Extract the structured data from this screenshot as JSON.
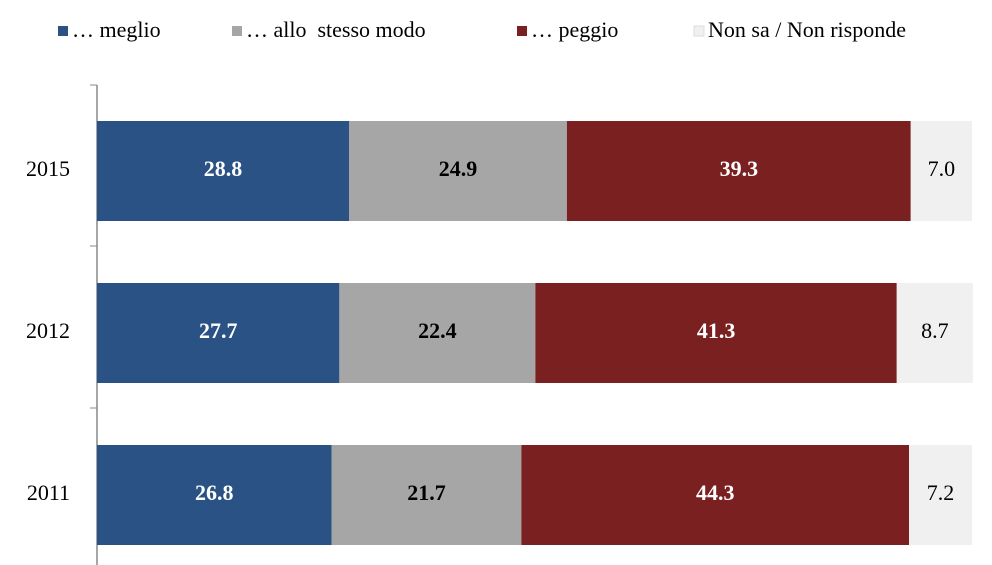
{
  "chart_data": {
    "type": "stacked-bar-horizontal",
    "categories": [
      "2015",
      "2012",
      "2011"
    ],
    "xlim": [
      0,
      100
    ],
    "series": [
      {
        "name": "… meglio",
        "color": "#2b5285",
        "values": [
          28.8,
          27.7,
          26.8
        ]
      },
      {
        "name": "… allo  stesso modo",
        "color": "#a6a6a6",
        "values": [
          24.9,
          22.4,
          21.7
        ]
      },
      {
        "name": "… peggio",
        "color": "#7a2020",
        "values": [
          39.3,
          41.3,
          44.3
        ]
      },
      {
        "name": "Non sa / Non risponde",
        "color": "#f0f0f0",
        "values": [
          7.0,
          8.7,
          7.2
        ],
        "value_labels": [
          "7.0",
          "8.7",
          "7.2"
        ]
      }
    ]
  }
}
